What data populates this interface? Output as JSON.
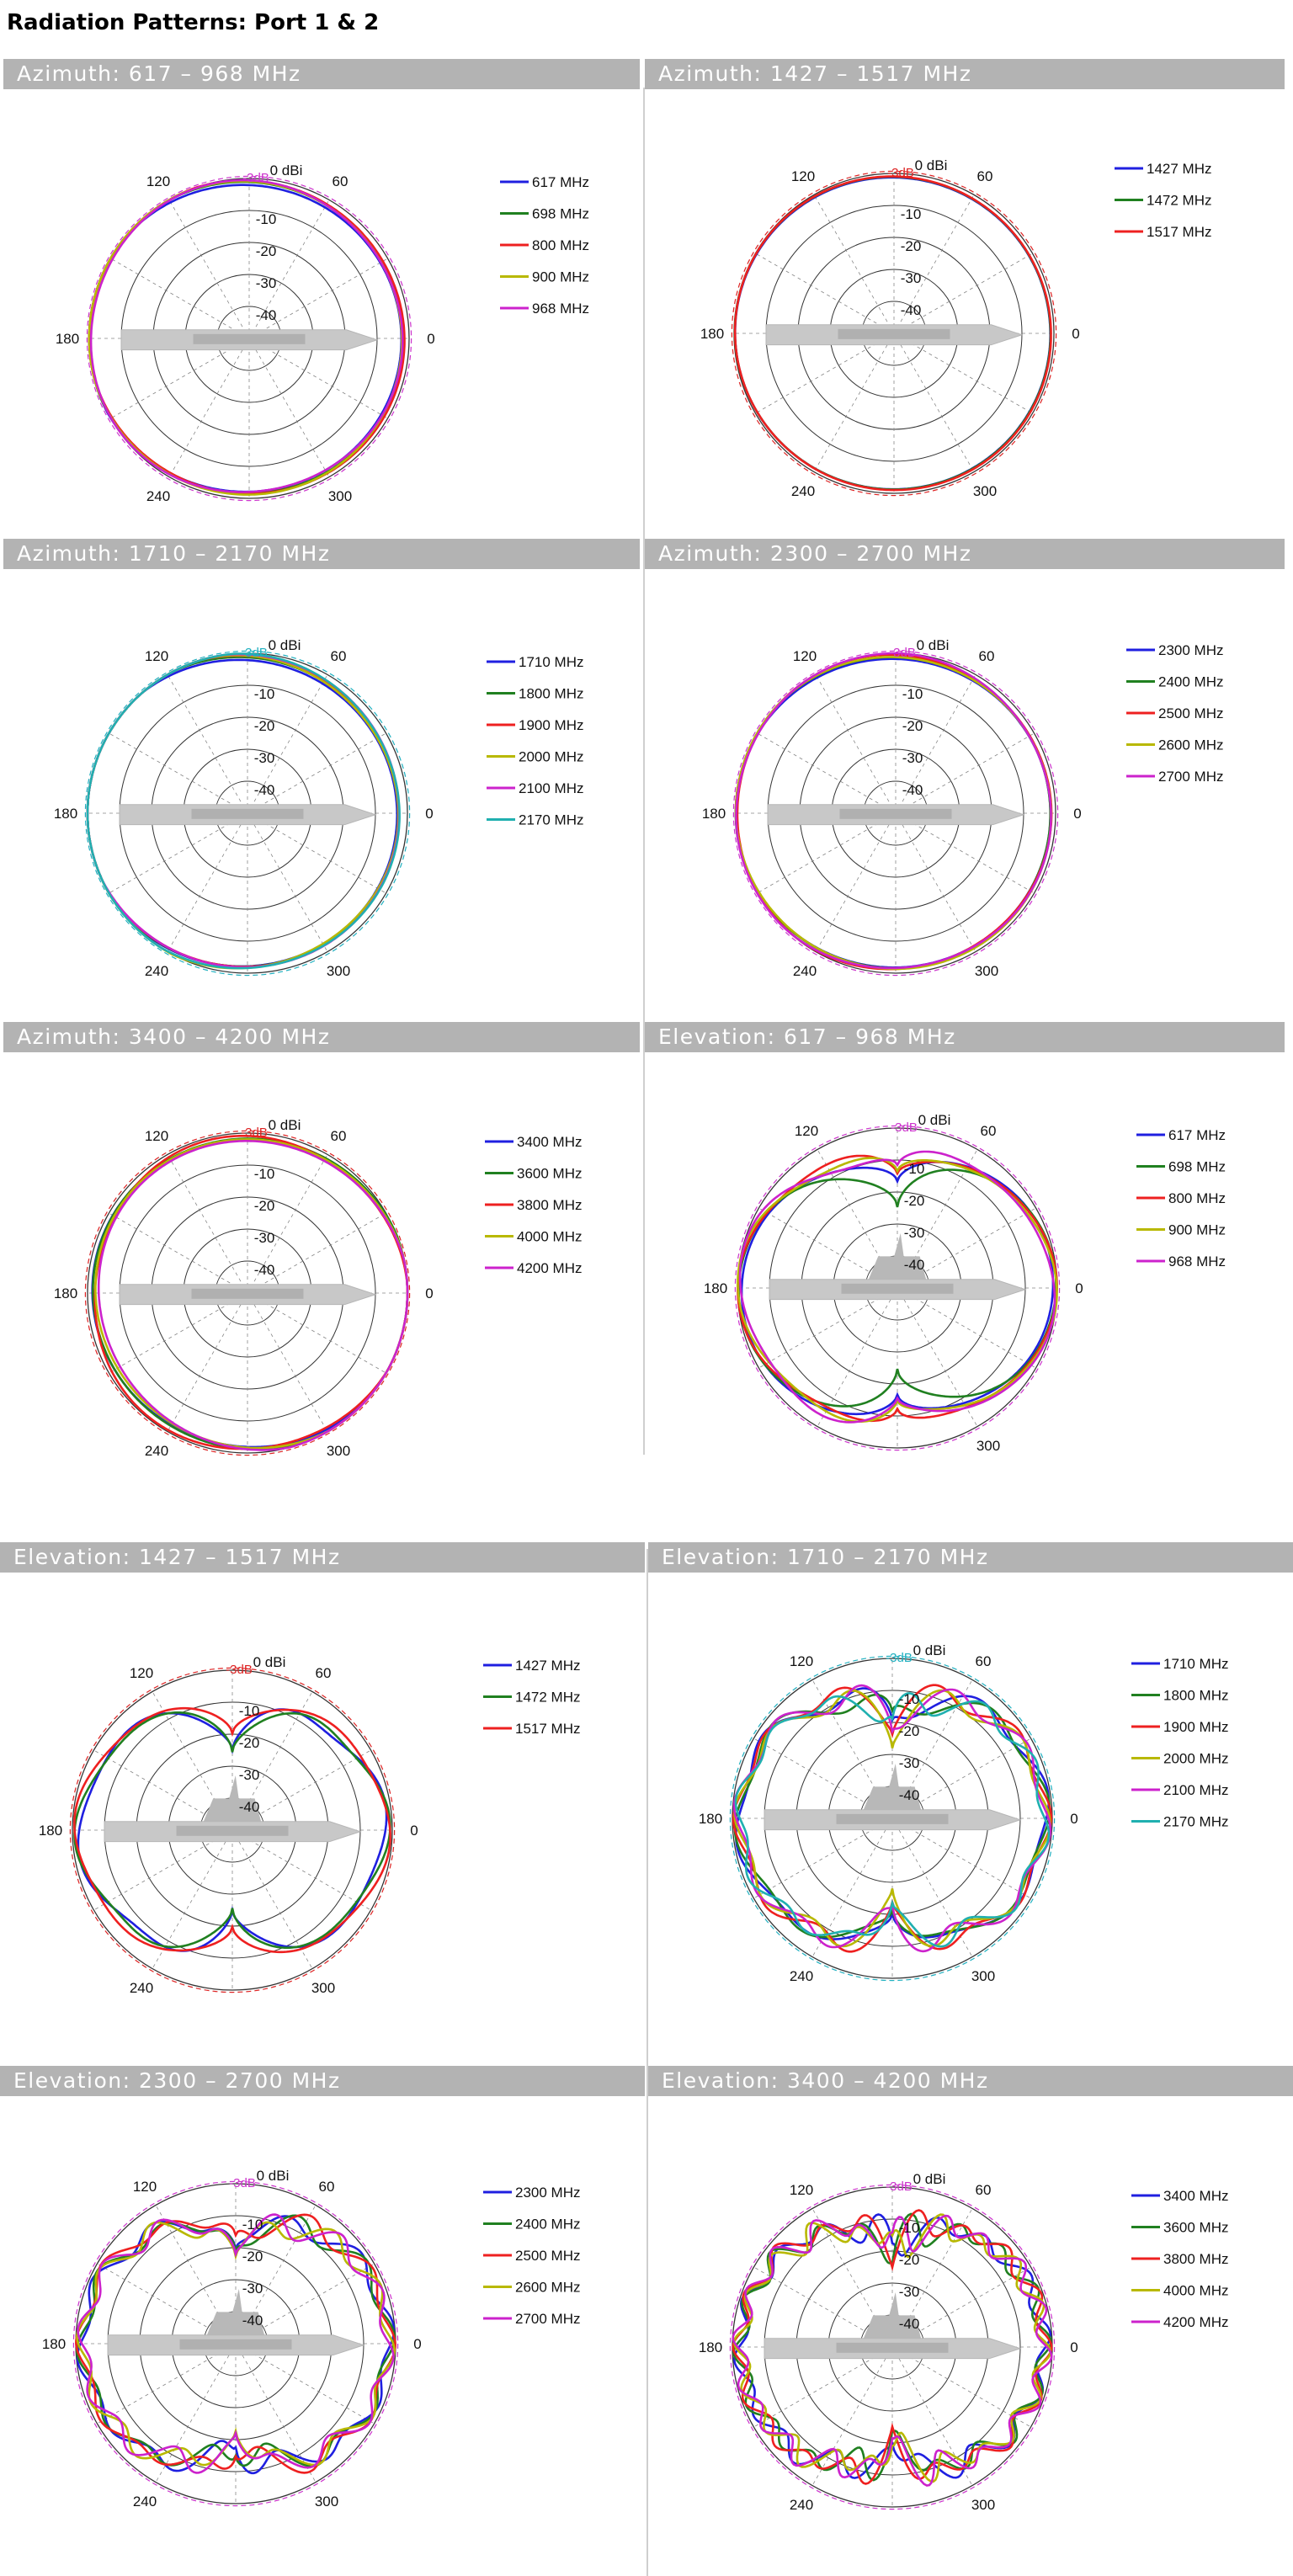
{
  "page": {
    "title": "Radiation Patterns: Port 1 & 2"
  },
  "chart_data": [
    {
      "type": "polar",
      "title": "Azimuth: 617 – 968 MHz",
      "plane": "azimuth",
      "r_ticks": [
        "0 dBi",
        "-10",
        "-20",
        "-30",
        "-40"
      ],
      "angle_ticks": [
        "0",
        "60",
        "120",
        "180",
        "240",
        "300"
      ],
      "ref_label": "-3dB",
      "ref_color": "#cc33cc",
      "series": [
        {
          "name": "617 MHz",
          "color": "#1f1fe0",
          "shape": {
            "kind": "omni",
            "base": -1.5,
            "a": [
              [
                1,
                -1.5,
                0
              ],
              [
                2,
                0.6,
                0.3
              ]
            ]
          }
        },
        {
          "name": "698 MHz",
          "color": "#208020",
          "shape": {
            "kind": "omni",
            "base": -1.0,
            "a": [
              [
                1,
                -1.2,
                0.2
              ],
              [
                2,
                0.5,
                0.8
              ]
            ]
          }
        },
        {
          "name": "800 MHz",
          "color": "#ee2020",
          "shape": {
            "kind": "omni",
            "base": -0.8,
            "a": [
              [
                1,
                -1.0,
                0.4
              ],
              [
                2,
                0.6,
                1.1
              ]
            ]
          }
        },
        {
          "name": "900 MHz",
          "color": "#b8b800",
          "shape": {
            "kind": "omni",
            "base": -1.0,
            "a": [
              [
                1,
                -1.3,
                0.1
              ],
              [
                2,
                0.4,
                1.5
              ]
            ]
          }
        },
        {
          "name": "968 MHz",
          "color": "#cc22cc",
          "shape": {
            "kind": "omni",
            "base": -1.3,
            "a": [
              [
                1,
                -1.1,
                0.3
              ],
              [
                3,
                0.5,
                0.9
              ]
            ]
          }
        }
      ]
    },
    {
      "type": "polar",
      "title": "Azimuth: 1427 – 1517 MHz",
      "plane": "azimuth",
      "r_ticks": [
        "0 dBi",
        "-10",
        "-20",
        "-30",
        "-40"
      ],
      "angle_ticks": [
        "0",
        "60",
        "120",
        "180",
        "240",
        "300"
      ],
      "ref_label": "-3dB",
      "ref_color": "#dd2222",
      "series": [
        {
          "name": "1427 MHz",
          "color": "#1f1fe0",
          "shape": {
            "kind": "omni",
            "base": -1.0,
            "a": [
              [
                1,
                -0.4,
                0
              ],
              [
                2,
                0.3,
                0.5
              ]
            ]
          }
        },
        {
          "name": "1472 MHz",
          "color": "#208020",
          "shape": {
            "kind": "omni",
            "base": -0.9,
            "a": [
              [
                1,
                -0.4,
                0.2
              ],
              [
                2,
                0.3,
                0.7
              ]
            ]
          }
        },
        {
          "name": "1517 MHz",
          "color": "#ee2020",
          "shape": {
            "kind": "omni",
            "base": -0.8,
            "a": [
              [
                1,
                -0.3,
                0.1
              ],
              [
                2,
                0.3,
                0.9
              ]
            ]
          }
        }
      ]
    },
    {
      "type": "polar",
      "title": "Azimuth: 1710 – 2170 MHz",
      "plane": "azimuth",
      "r_ticks": [
        "0 dBi",
        "-10",
        "-20",
        "-30",
        "-40"
      ],
      "angle_ticks": [
        "0",
        "60",
        "120",
        "180",
        "240",
        "300"
      ],
      "ref_label": "-3dB",
      "ref_color": "#20b0c0",
      "series": [
        {
          "name": "1710 MHz",
          "color": "#1f1fe0",
          "shape": {
            "kind": "omni",
            "base": -1.6,
            "a": [
              [
                1,
                -2.2,
                0
              ],
              [
                2,
                0.6,
                0.4
              ]
            ]
          }
        },
        {
          "name": "1800 MHz",
          "color": "#208020",
          "shape": {
            "kind": "omni",
            "base": -1.3,
            "a": [
              [
                1,
                -2.0,
                0.2
              ],
              [
                2,
                0.5,
                0.7
              ]
            ]
          }
        },
        {
          "name": "1900 MHz",
          "color": "#ee2020",
          "shape": {
            "kind": "omni",
            "base": -1.1,
            "a": [
              [
                1,
                -2.0,
                0.3
              ],
              [
                2,
                0.6,
                1.0
              ]
            ]
          }
        },
        {
          "name": "2000 MHz",
          "color": "#b8b800",
          "shape": {
            "kind": "omni",
            "base": -1.2,
            "a": [
              [
                1,
                -2.1,
                0.1
              ],
              [
                3,
                0.5,
                0.5
              ]
            ]
          }
        },
        {
          "name": "2100 MHz",
          "color": "#cc22cc",
          "shape": {
            "kind": "omni",
            "base": -1.0,
            "a": [
              [
                1,
                -1.9,
                0.4
              ],
              [
                2,
                0.5,
                1.3
              ]
            ]
          }
        },
        {
          "name": "2170 MHz",
          "color": "#20b0b0",
          "shape": {
            "kind": "omni",
            "base": -0.9,
            "a": [
              [
                1,
                -1.8,
                0.2
              ],
              [
                3,
                0.4,
                1.1
              ]
            ]
          }
        }
      ]
    },
    {
      "type": "polar",
      "title": "Azimuth: 2300 – 2700 MHz",
      "plane": "azimuth",
      "r_ticks": [
        "0 dBi",
        "-10",
        "-20",
        "-30",
        "-40"
      ],
      "angle_ticks": [
        "0",
        "60",
        "120",
        "180",
        "240",
        "300"
      ],
      "ref_label": "-3dB",
      "ref_color": "#cc33cc",
      "series": [
        {
          "name": "2300 MHz",
          "color": "#1f1fe0",
          "shape": {
            "kind": "omni",
            "base": -1.3,
            "a": [
              [
                1,
                -0.8,
                0
              ],
              [
                2,
                0.5,
                0.3
              ]
            ]
          }
        },
        {
          "name": "2400 MHz",
          "color": "#208020",
          "shape": {
            "kind": "omni",
            "base": -1.1,
            "a": [
              [
                1,
                -0.9,
                0.2
              ],
              [
                2,
                0.4,
                0.6
              ]
            ]
          }
        },
        {
          "name": "2500 MHz",
          "color": "#ee2020",
          "shape": {
            "kind": "omni",
            "base": -0.9,
            "a": [
              [
                1,
                -0.8,
                0.3
              ],
              [
                3,
                0.4,
                0.4
              ]
            ]
          }
        },
        {
          "name": "2600 MHz",
          "color": "#b8b800",
          "shape": {
            "kind": "omni",
            "base": -1.0,
            "a": [
              [
                1,
                -0.7,
                0.1
              ],
              [
                2,
                0.5,
                1.0
              ]
            ]
          }
        },
        {
          "name": "2700 MHz",
          "color": "#cc22cc",
          "shape": {
            "kind": "omni",
            "base": -0.8,
            "a": [
              [
                1,
                -0.9,
                0.4
              ],
              [
                3,
                0.5,
                1.2
              ]
            ]
          }
        }
      ]
    },
    {
      "type": "polar",
      "title": "Azimuth: 3400 – 4200 MHz",
      "plane": "azimuth",
      "r_ticks": [
        "0 dBi",
        "-10",
        "-20",
        "-30",
        "-40"
      ],
      "angle_ticks": [
        "0",
        "60",
        "120",
        "180",
        "240",
        "300"
      ],
      "ref_label": "-3dB",
      "ref_color": "#dd2222",
      "series": [
        {
          "name": "3400 MHz",
          "color": "#1f1fe0",
          "shape": {
            "kind": "omni",
            "base": -1.2,
            "a": [
              [
                1,
                1.0,
                0
              ],
              [
                2,
                0.8,
                0.5
              ]
            ]
          }
        },
        {
          "name": "3600 MHz",
          "color": "#208020",
          "shape": {
            "kind": "omni",
            "base": -1.0,
            "a": [
              [
                1,
                1.2,
                0.2
              ],
              [
                2,
                0.7,
                0.8
              ]
            ]
          }
        },
        {
          "name": "3800 MHz",
          "color": "#ee2020",
          "shape": {
            "kind": "omni",
            "base": -1.1,
            "a": [
              [
                1,
                0.6,
                0.4
              ],
              [
                3,
                0.8,
                0.6
              ]
            ]
          }
        },
        {
          "name": "4000 MHz",
          "color": "#b8b800",
          "shape": {
            "kind": "omni",
            "base": -1.4,
            "a": [
              [
                1,
                1.5,
                0.1
              ],
              [
                2,
                0.9,
                1.1
              ]
            ]
          }
        },
        {
          "name": "4200 MHz",
          "color": "#cc22cc",
          "shape": {
            "kind": "omni",
            "base": -1.6,
            "a": [
              [
                1,
                2.2,
                0.3
              ],
              [
                2,
                1.2,
                1.4
              ]
            ]
          }
        }
      ]
    },
    {
      "type": "polar",
      "title": "Elevation: 617 – 968 MHz",
      "plane": "elevation",
      "r_ticks": [
        "0 dBi",
        "-10",
        "-20",
        "-30",
        "-40"
      ],
      "angle_ticks": [
        "0",
        "60",
        "120",
        "180",
        "300"
      ],
      "ref_label": "-3dB",
      "ref_color": "#cc33cc",
      "series": [
        {
          "name": "617 MHz",
          "color": "#1f1fe0",
          "shape": {
            "kind": "elev",
            "peak": -1.5,
            "nullDepth": 16,
            "n": 1,
            "ripple": 1.5,
            "ph": 0.2
          }
        },
        {
          "name": "698 MHz",
          "color": "#208020",
          "shape": {
            "kind": "elev",
            "peak": -1.2,
            "nullDepth": 22,
            "n": 1,
            "ripple": 2.0,
            "ph": 0.9
          }
        },
        {
          "name": "800 MHz",
          "color": "#ee2020",
          "shape": {
            "kind": "elev",
            "peak": -1.0,
            "nullDepth": 14,
            "n": 2,
            "ripple": 1.8,
            "ph": 1.4
          }
        },
        {
          "name": "900 MHz",
          "color": "#b8b800",
          "shape": {
            "kind": "elev",
            "peak": -1.1,
            "nullDepth": 15,
            "n": 2,
            "ripple": 2.2,
            "ph": 2.1
          }
        },
        {
          "name": "968 MHz",
          "color": "#cc22cc",
          "shape": {
            "kind": "elev",
            "peak": -1.4,
            "nullDepth": 13,
            "n": 2,
            "ripple": 2.5,
            "ph": 2.8
          }
        }
      ]
    },
    {
      "type": "polar",
      "title": "Elevation: 1427 – 1517 MHz",
      "plane": "elevation",
      "r_ticks": [
        "0 dBi",
        "-10",
        "-20",
        "-30",
        "-40"
      ],
      "angle_ticks": [
        "0",
        "60",
        "120",
        "180",
        "240",
        "300"
      ],
      "ref_label": "-3dB",
      "ref_color": "#dd2222",
      "series": [
        {
          "name": "1427 MHz",
          "color": "#1f1fe0",
          "shape": {
            "kind": "elev",
            "peak": -2.5,
            "nullDepth": 20,
            "n": 3,
            "ripple": 2.5,
            "ph": 0.3
          }
        },
        {
          "name": "1472 MHz",
          "color": "#208020",
          "shape": {
            "kind": "elev",
            "peak": -2.0,
            "nullDepth": 22,
            "n": 3,
            "ripple": 2.8,
            "ph": 1.2
          }
        },
        {
          "name": "1517 MHz",
          "color": "#ee2020",
          "shape": {
            "kind": "elev",
            "peak": -1.5,
            "nullDepth": 18,
            "n": 3,
            "ripple": 2.0,
            "ph": 2.2
          }
        }
      ]
    },
    {
      "type": "polar",
      "title": "Elevation: 1710 – 2170 MHz",
      "plane": "elevation",
      "r_ticks": [
        "0 dBi",
        "-10",
        "-20",
        "-30",
        "-40"
      ],
      "angle_ticks": [
        "0",
        "60",
        "120",
        "180",
        "240",
        "300"
      ],
      "ref_label": "-3dB",
      "ref_color": "#20b0c0",
      "series": [
        {
          "name": "1710 MHz",
          "color": "#1f1fe0",
          "shape": {
            "kind": "elev",
            "peak": -2.0,
            "nullDepth": 18,
            "n": 4,
            "ripple": 3.0,
            "ph": 0.1
          }
        },
        {
          "name": "1800 MHz",
          "color": "#208020",
          "shape": {
            "kind": "elev",
            "peak": -2.2,
            "nullDepth": 19,
            "n": 4,
            "ripple": 3.2,
            "ph": 0.8
          }
        },
        {
          "name": "1900 MHz",
          "color": "#ee2020",
          "shape": {
            "kind": "elev",
            "peak": -1.8,
            "nullDepth": 17,
            "n": 5,
            "ripple": 3.0,
            "ph": 1.5
          }
        },
        {
          "name": "2000 MHz",
          "color": "#b8b800",
          "shape": {
            "kind": "elev",
            "peak": -2.3,
            "nullDepth": 20,
            "n": 5,
            "ripple": 3.4,
            "ph": 2.0
          }
        },
        {
          "name": "2100 MHz",
          "color": "#cc22cc",
          "shape": {
            "kind": "elev",
            "peak": -2.1,
            "nullDepth": 18,
            "n": 5,
            "ripple": 3.6,
            "ph": 2.6
          }
        },
        {
          "name": "2170 MHz",
          "color": "#20b0b0",
          "shape": {
            "kind": "elev",
            "peak": -2.4,
            "nullDepth": 19,
            "n": 6,
            "ripple": 3.5,
            "ph": 3.1
          }
        }
      ]
    },
    {
      "type": "polar",
      "title": "Elevation: 2300 – 2700 MHz",
      "plane": "elevation",
      "r_ticks": [
        "0 dBi",
        "-10",
        "-20",
        "-30",
        "-40"
      ],
      "angle_ticks": [
        "0",
        "60",
        "120",
        "180",
        "240",
        "300"
      ],
      "ref_label": "-3dB",
      "ref_color": "#cc33cc",
      "series": [
        {
          "name": "2300 MHz",
          "color": "#1f1fe0",
          "shape": {
            "kind": "elev",
            "peak": -2.0,
            "nullDepth": 18,
            "n": 6,
            "ripple": 3.5,
            "ph": 0.3
          }
        },
        {
          "name": "2400 MHz",
          "color": "#208020",
          "shape": {
            "kind": "elev",
            "peak": -2.2,
            "nullDepth": 19,
            "n": 6,
            "ripple": 3.8,
            "ph": 1.0
          }
        },
        {
          "name": "2500 MHz",
          "color": "#ee2020",
          "shape": {
            "kind": "elev",
            "peak": -1.8,
            "nullDepth": 17,
            "n": 6,
            "ripple": 3.4,
            "ph": 1.7
          }
        },
        {
          "name": "2600 MHz",
          "color": "#b8b800",
          "shape": {
            "kind": "elev",
            "peak": -2.1,
            "nullDepth": 20,
            "n": 7,
            "ripple": 3.6,
            "ph": 2.3
          }
        },
        {
          "name": "2700 MHz",
          "color": "#cc22cc",
          "shape": {
            "kind": "elev",
            "peak": -2.4,
            "nullDepth": 18,
            "n": 7,
            "ripple": 3.9,
            "ph": 2.9
          }
        }
      ]
    },
    {
      "type": "polar",
      "title": "Elevation: 3400 – 4200 MHz",
      "plane": "elevation",
      "r_ticks": [
        "0 dBi",
        "-10",
        "-20",
        "-30",
        "-40"
      ],
      "angle_ticks": [
        "0",
        "60",
        "120",
        "180",
        "240",
        "300"
      ],
      "ref_label": "-3dB",
      "ref_color": "#cc33cc",
      "series": [
        {
          "name": "3400 MHz",
          "color": "#1f1fe0",
          "shape": {
            "kind": "elev",
            "peak": -2.5,
            "nullDepth": 17,
            "n": 8,
            "ripple": 4.2,
            "ph": 0.2
          }
        },
        {
          "name": "3600 MHz",
          "color": "#208020",
          "shape": {
            "kind": "elev",
            "peak": -2.6,
            "nullDepth": 18,
            "n": 9,
            "ripple": 4.4,
            "ph": 0.9
          }
        },
        {
          "name": "3800 MHz",
          "color": "#ee2020",
          "shape": {
            "kind": "elev",
            "peak": -2.2,
            "nullDepth": 16,
            "n": 9,
            "ripple": 4.0,
            "ph": 1.6
          }
        },
        {
          "name": "4000 MHz",
          "color": "#b8b800",
          "shape": {
            "kind": "elev",
            "peak": -2.8,
            "nullDepth": 18,
            "n": 10,
            "ripple": 4.5,
            "ph": 2.2
          }
        },
        {
          "name": "4200 MHz",
          "color": "#cc22cc",
          "shape": {
            "kind": "elev",
            "peak": -2.4,
            "nullDepth": 17,
            "n": 10,
            "ripple": 4.6,
            "ph": 2.8
          }
        }
      ]
    }
  ]
}
